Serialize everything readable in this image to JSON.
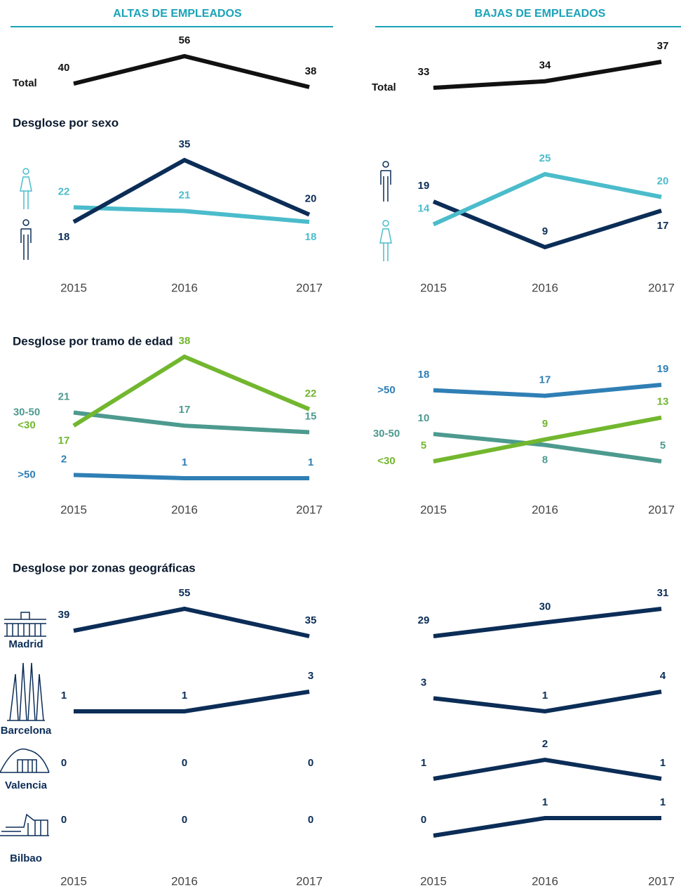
{
  "columns": [
    "ALTAS DE EMPLEADOS",
    "BAJAS DE EMPLEADOS"
  ],
  "section_titles": [
    "Desglose por sexo",
    "Desglose por tramo de edad",
    "Desglose por zonas geográficas"
  ],
  "chart_data": [
    {
      "type": "line",
      "series": [
        {
          "name": "Total",
          "color": "#111111",
          "values": [
            40,
            56,
            38
          ]
        }
      ]
    },
    {
      "type": "line",
      "series": [
        {
          "name": "Total",
          "color": "#111111",
          "values": [
            33,
            34,
            37
          ]
        }
      ]
    },
    {
      "type": "line",
      "x": [
        "2015",
        "2016",
        "2017"
      ],
      "series": [
        {
          "color": "#4bbccb",
          "values": [
            22,
            21,
            18
          ]
        },
        {
          "color": "#0b2d57",
          "values": [
            18,
            35,
            20
          ]
        }
      ]
    },
    {
      "type": "line",
      "x": [
        "2015",
        "2016",
        "2017"
      ],
      "series": [
        {
          "color": "#0b2d57",
          "values": [
            19,
            9,
            17
          ]
        },
        {
          "color": "#4bbccb",
          "values": [
            14,
            25,
            20
          ]
        }
      ]
    },
    {
      "type": "line",
      "x": [
        "2015",
        "2016",
        "2017"
      ],
      "series": [
        {
          "name": "30-50",
          "color": "#4d9a8f",
          "values": [
            21,
            17,
            15
          ]
        },
        {
          "name": "<30",
          "color": "#72b72e",
          "values": [
            17,
            38,
            22
          ]
        },
        {
          "name": ">50",
          "color": "#2f7fb5",
          "values": [
            2,
            1,
            1
          ]
        }
      ]
    },
    {
      "type": "line",
      "x": [
        "2015",
        "2016",
        "2017"
      ],
      "series": [
        {
          "name": ">50",
          "color": "#2f7fb5",
          "values": [
            18,
            17,
            19
          ]
        },
        {
          "name": "30-50",
          "color": "#4d9a8f",
          "values": [
            10,
            8,
            5
          ]
        },
        {
          "name": "<30",
          "color": "#72b72e",
          "values": [
            5,
            9,
            13
          ]
        }
      ]
    },
    {
      "type": "line",
      "x": [
        "2015",
        "2016",
        "2017"
      ],
      "series": [
        {
          "name": "Madrid",
          "color": "#0b2d57",
          "values": [
            39,
            55,
            35
          ]
        },
        {
          "name": "Barcelona",
          "color": "#0b2d57",
          "values": [
            1,
            1,
            3
          ]
        },
        {
          "name": "Valencia",
          "color": "#0b2d57",
          "values": [
            0,
            0,
            0
          ],
          "line": false
        },
        {
          "name": "Bilbao",
          "color": "#0b2d57",
          "values": [
            0,
            0,
            0
          ],
          "line": false
        }
      ]
    },
    {
      "type": "line",
      "x": [
        "2015",
        "2016",
        "2017"
      ],
      "series": [
        {
          "color": "#0b2d57",
          "values": [
            29,
            30,
            31
          ]
        },
        {
          "color": "#0b2d57",
          "values": [
            3,
            1,
            4
          ]
        },
        {
          "color": "#0b2d57",
          "values": [
            1,
            2,
            1
          ]
        },
        {
          "color": "#0b2d57",
          "values": [
            0,
            1,
            1
          ]
        }
      ]
    }
  ]
}
